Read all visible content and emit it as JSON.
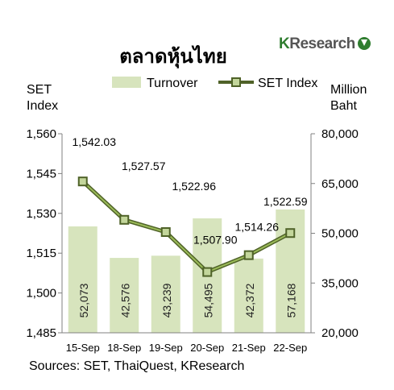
{
  "title": "ตลาดหุ้นไทย",
  "logo": {
    "k": "K",
    "text": "Research"
  },
  "left_axis_title": [
    "SET",
    "Index"
  ],
  "right_axis_title": [
    "Million",
    "Baht"
  ],
  "source": "Sources: SET, ThaiQuest, KResearch",
  "colors": {
    "bar": "#d7e4bd",
    "line": "#4f6228",
    "marker_fill": "#c3d69b",
    "axis": "#808080"
  },
  "chart_data": {
    "type": "bar+line",
    "categories": [
      "15-Sep",
      "18-Sep",
      "19-Sep",
      "20-Sep",
      "21-Sep",
      "22-Sep"
    ],
    "legend": [
      "Turnover",
      "SET Index"
    ],
    "legend_position": "top",
    "series": [
      {
        "name": "Turnover",
        "type": "bar",
        "axis": "right",
        "values": [
          52073,
          42576,
          43239,
          54495,
          42372,
          57168
        ],
        "labels": [
          "52,073",
          "42,576",
          "43,239",
          "54,495",
          "42,372",
          "57,168"
        ]
      },
      {
        "name": "SET Index",
        "type": "line",
        "axis": "left",
        "values": [
          1542.03,
          1527.57,
          1522.96,
          1507.9,
          1514.26,
          1522.59
        ],
        "labels": [
          "1,542.03",
          "1,527.57",
          "1,522.96",
          "1,507.90",
          "1,514.26",
          "1,522.59"
        ]
      }
    ],
    "y_left": {
      "min": 1485,
      "max": 1560,
      "ticks": [
        1485,
        1500,
        1515,
        1530,
        1545,
        1560
      ],
      "tick_labels": [
        "1,485",
        "1,500",
        "1,515",
        "1,530",
        "1,545",
        "1,560"
      ]
    },
    "y_right": {
      "min": 20000,
      "max": 80000,
      "ticks": [
        20000,
        35000,
        50000,
        65000,
        80000
      ],
      "tick_labels": [
        "20,000",
        "35,000",
        "50,000",
        "65,000",
        "80,000"
      ]
    },
    "grid": false
  }
}
